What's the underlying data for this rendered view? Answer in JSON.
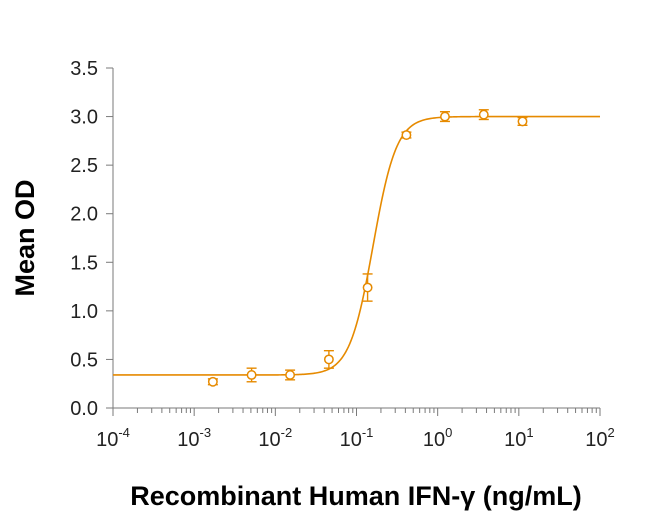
{
  "chart_data": {
    "type": "scatter",
    "title": "",
    "xlabel": "Recombinant Human IFN-γ (ng/mL)",
    "ylabel": "Mean OD",
    "xscale": "log10",
    "xlim": [
      0.0001,
      100
    ],
    "ylim": [
      0.0,
      3.5
    ],
    "grid": false,
    "legend": "none",
    "color": "#E68A00",
    "x_ticks": [
      {
        "base": "10",
        "exp": "-4",
        "value": 0.0001
      },
      {
        "base": "10",
        "exp": "-3",
        "value": 0.001
      },
      {
        "base": "10",
        "exp": "-2",
        "value": 0.01
      },
      {
        "base": "10",
        "exp": "-1",
        "value": 0.1
      },
      {
        "base": "10",
        "exp": "0",
        "value": 1
      },
      {
        "base": "10",
        "exp": "1",
        "value": 10
      },
      {
        "base": "10",
        "exp": "2",
        "value": 100
      }
    ],
    "y_ticks": [
      "0.0",
      "0.5",
      "1.0",
      "1.5",
      "2.0",
      "2.5",
      "3.0",
      "3.5"
    ],
    "series": [
      {
        "name": "Mean OD",
        "marker": "open-circle",
        "x": [
          0.0017,
          0.0051,
          0.0152,
          0.0457,
          0.137,
          0.412,
          1.23,
          3.7,
          11.1
        ],
        "y": [
          0.27,
          0.34,
          0.34,
          0.5,
          1.24,
          2.81,
          3.0,
          3.02,
          2.95
        ],
        "err": [
          0.03,
          0.07,
          0.05,
          0.09,
          0.14,
          0.03,
          0.05,
          0.05,
          0.04
        ]
      }
    ],
    "fit": {
      "model": "4PL",
      "bottom": 0.34,
      "top": 3.0,
      "ec50": 0.16,
      "hill": 3.0
    }
  }
}
